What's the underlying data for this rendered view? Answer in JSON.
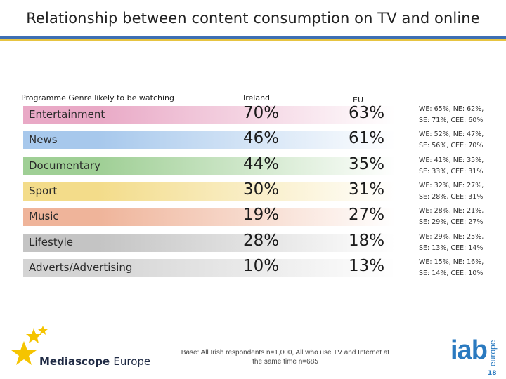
{
  "title": "Relationship between content consumption on TV and online",
  "headers": {
    "genre": "Programme Genre likely to be watching",
    "ireland": "Ireland",
    "eu": "EU"
  },
  "rows": [
    {
      "genre": "Entertainment",
      "ireland": "70%",
      "eu": "63%",
      "note1": "WE: 65%, NE: 62%,",
      "note2": "SE: 71%, CEE: 60%",
      "color": "#e9a9c6"
    },
    {
      "genre": "News",
      "ireland": "46%",
      "eu": "61%",
      "note1": "WE: 52%, NE: 47%,",
      "note2": "SE: 56%, CEE: 70%",
      "color": "#a7c8ec"
    },
    {
      "genre": "Documentary",
      "ireland": "44%",
      "eu": "35%",
      "note1": "WE: 41%, NE: 35%,",
      "note2": "SE: 33%, CEE: 31%",
      "color": "#9fcf95"
    },
    {
      "genre": "Sport",
      "ireland": "30%",
      "eu": "31%",
      "note1": "WE: 32%, NE: 27%,",
      "note2": "SE: 28%, CEE: 31%",
      "color": "#f3dc8a"
    },
    {
      "genre": "Music",
      "ireland": "19%",
      "eu": "27%",
      "note1": "WE: 28%, NE: 21%,",
      "note2": "SE: 29%, CEE: 27%",
      "color": "#efb49a"
    },
    {
      "genre": "Lifestyle",
      "ireland": "28%",
      "eu": "18%",
      "note1": "WE: 29%, NE: 25%,",
      "note2": "SE: 13%, CEE: 14%",
      "color": "#c4c4c4"
    },
    {
      "genre": "Adverts/Advertising",
      "ireland": "10%",
      "eu": "13%",
      "note1": "WE: 15%, NE: 16%,",
      "note2": "SE: 14%, CEE: 10%",
      "color": "#d4d4d4"
    }
  ],
  "footer": {
    "brand_bold": "Mediascope",
    "brand_light": "Europe",
    "base_line1": "Base: All Irish respondents n=1,000, All who use TV and Internet at",
    "base_line2": "the same time n=685",
    "iab": "iab",
    "iab_sub": "europe",
    "page_number": "18"
  },
  "colors": {
    "accent_blue": "#3d6fb4",
    "accent_yellow": "#e7c441",
    "star_yellow": "#f5c400",
    "iab_blue": "#2a7ac0"
  }
}
